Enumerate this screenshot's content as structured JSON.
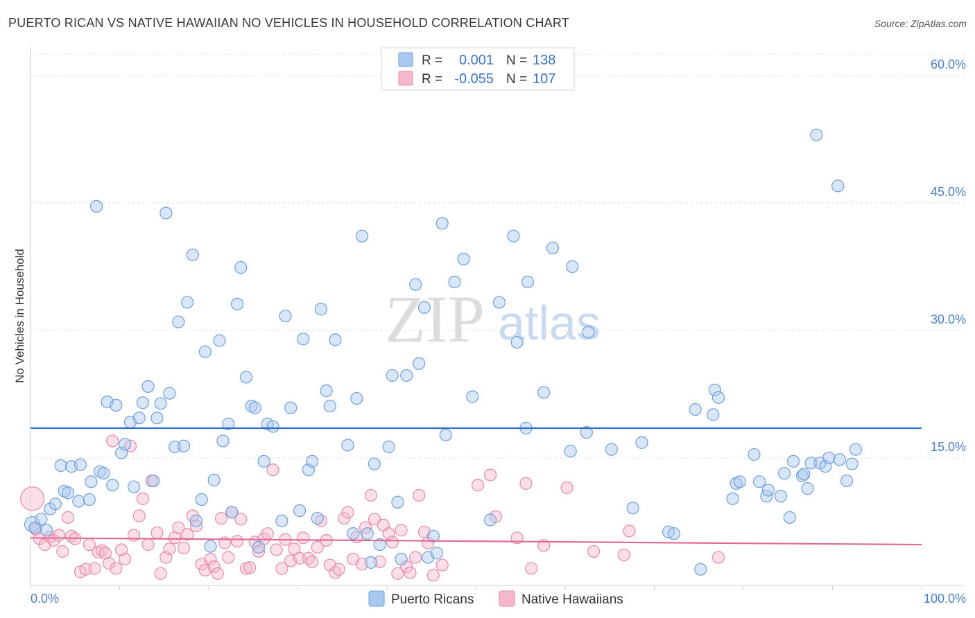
{
  "chart_data": {
    "type": "scatter",
    "title": "PUERTO RICAN VS NATIVE HAWAIIAN NO VEHICLES IN HOUSEHOLD CORRELATION CHART",
    "source": "Source: ZipAtlas.com",
    "xlabel": "",
    "ylabel": "No Vehicles in Household",
    "xlim": [
      0,
      100
    ],
    "ylim": [
      0,
      63
    ],
    "x_tick_labels": [
      "0.0%",
      "100.0%"
    ],
    "y_ticks": [
      15,
      30,
      45,
      60
    ],
    "y_tick_labels": [
      "15.0%",
      "30.0%",
      "45.0%",
      "60.0%"
    ],
    "watermark": {
      "zip": "ZIP",
      "atlas": "atlas"
    },
    "stats_legend": [
      {
        "r_label": "R =",
        "r_value": "0.001",
        "n_label": "N =",
        "n_value": "138"
      },
      {
        "r_label": "R =",
        "r_value": "-0.055",
        "n_label": "N =",
        "n_value": "107"
      }
    ],
    "series": [
      {
        "name": "Puerto Ricans",
        "color": "#a9c8ef",
        "stroke": "#6e9fdb",
        "trend_color": "#2e6fc7",
        "trend": [
          18.5,
          18.5
        ],
        "points": [
          [
            0.2,
            7.2
          ],
          [
            0.5,
            6.8
          ],
          [
            1.2,
            7.8
          ],
          [
            1.8,
            6.5
          ],
          [
            2.2,
            9.0
          ],
          [
            2.8,
            9.6
          ],
          [
            3.4,
            14.1
          ],
          [
            3.8,
            11.1
          ],
          [
            4.2,
            10.9
          ],
          [
            4.6,
            14.0
          ],
          [
            5.4,
            9.9
          ],
          [
            5.6,
            14.2
          ],
          [
            6.6,
            10.1
          ],
          [
            6.8,
            12.2
          ],
          [
            7.4,
            44.6
          ],
          [
            7.8,
            13.4
          ],
          [
            8.2,
            13.2
          ],
          [
            8.6,
            21.6
          ],
          [
            9.2,
            11.8
          ],
          [
            9.6,
            21.2
          ],
          [
            10.2,
            15.6
          ],
          [
            10.6,
            16.6
          ],
          [
            11.2,
            19.2
          ],
          [
            11.6,
            11.6
          ],
          [
            12.2,
            19.7
          ],
          [
            12.6,
            21.5
          ],
          [
            13.2,
            23.4
          ],
          [
            13.8,
            12.3
          ],
          [
            14.2,
            19.7
          ],
          [
            14.6,
            21.4
          ],
          [
            15.2,
            43.8
          ],
          [
            15.6,
            22.6
          ],
          [
            16.2,
            16.3
          ],
          [
            16.6,
            31.0
          ],
          [
            17.2,
            16.4
          ],
          [
            17.6,
            33.3
          ],
          [
            18.2,
            38.9
          ],
          [
            18.6,
            7.6
          ],
          [
            19.2,
            10.1
          ],
          [
            19.6,
            27.5
          ],
          [
            20.2,
            4.6
          ],
          [
            20.6,
            12.4
          ],
          [
            21.2,
            28.8
          ],
          [
            21.6,
            17.0
          ],
          [
            22.2,
            19.0
          ],
          [
            22.6,
            8.6
          ],
          [
            23.2,
            33.1
          ],
          [
            23.6,
            37.4
          ],
          [
            24.2,
            24.5
          ],
          [
            24.8,
            21.1
          ],
          [
            25.2,
            20.9
          ],
          [
            25.6,
            4.5
          ],
          [
            26.2,
            14.6
          ],
          [
            26.6,
            19.0
          ],
          [
            27.2,
            18.7
          ],
          [
            28.2,
            7.6
          ],
          [
            28.6,
            31.7
          ],
          [
            29.2,
            20.9
          ],
          [
            30.2,
            8.8
          ],
          [
            30.6,
            29.0
          ],
          [
            31.2,
            13.6
          ],
          [
            31.6,
            14.6
          ],
          [
            32.2,
            7.9
          ],
          [
            32.6,
            32.5
          ],
          [
            33.2,
            22.9
          ],
          [
            33.6,
            21.1
          ],
          [
            34.2,
            28.9
          ],
          [
            35.6,
            16.5
          ],
          [
            36.2,
            6.1
          ],
          [
            36.6,
            22.0
          ],
          [
            37.2,
            41.1
          ],
          [
            37.8,
            6.1
          ],
          [
            38.2,
            2.7
          ],
          [
            38.6,
            14.3
          ],
          [
            39.2,
            4.8
          ],
          [
            40.2,
            16.3
          ],
          [
            40.6,
            24.7
          ],
          [
            41.2,
            9.8
          ],
          [
            41.6,
            3.1
          ],
          [
            42.2,
            24.7
          ],
          [
            43.2,
            35.4
          ],
          [
            43.6,
            26.1
          ],
          [
            44.2,
            32.7
          ],
          [
            44.6,
            3.3
          ],
          [
            45.2,
            5.8
          ],
          [
            45.6,
            3.8
          ],
          [
            46.2,
            42.6
          ],
          [
            46.6,
            17.7
          ],
          [
            47.6,
            35.7
          ],
          [
            48.6,
            38.4
          ],
          [
            49.6,
            22.2
          ],
          [
            51.6,
            7.7
          ],
          [
            52.6,
            33.3
          ],
          [
            54.2,
            41.1
          ],
          [
            54.6,
            28.6
          ],
          [
            55.6,
            18.5
          ],
          [
            55.8,
            35.7
          ],
          [
            57.6,
            22.7
          ],
          [
            58.6,
            39.7
          ],
          [
            60.6,
            15.8
          ],
          [
            60.8,
            37.5
          ],
          [
            62.4,
            18.0
          ],
          [
            62.6,
            29.8
          ],
          [
            65.2,
            16.0
          ],
          [
            67.6,
            9.1
          ],
          [
            68.6,
            16.8
          ],
          [
            71.6,
            6.3
          ],
          [
            72.2,
            6.1
          ],
          [
            74.6,
            20.7
          ],
          [
            75.2,
            1.9
          ],
          [
            76.6,
            20.1
          ],
          [
            76.8,
            23.0
          ],
          [
            77.2,
            22.1
          ],
          [
            78.8,
            10.2
          ],
          [
            79.2,
            12.0
          ],
          [
            79.6,
            12.2
          ],
          [
            81.2,
            15.4
          ],
          [
            81.8,
            12.2
          ],
          [
            82.6,
            10.5
          ],
          [
            82.8,
            11.2
          ],
          [
            84.2,
            10.5
          ],
          [
            84.6,
            13.2
          ],
          [
            85.2,
            8.0
          ],
          [
            85.6,
            14.6
          ],
          [
            86.6,
            12.9
          ],
          [
            86.8,
            13.1
          ],
          [
            87.2,
            11.4
          ],
          [
            87.6,
            14.4
          ],
          [
            88.2,
            53.0
          ],
          [
            88.6,
            14.4
          ],
          [
            89.2,
            14.0
          ],
          [
            89.6,
            15.0
          ],
          [
            90.6,
            47.0
          ],
          [
            90.8,
            14.8
          ],
          [
            91.6,
            12.3
          ],
          [
            92.2,
            14.3
          ],
          [
            92.6,
            16.0
          ]
        ]
      },
      {
        "name": "Native Hawaiians",
        "color": "#f5b8cb",
        "stroke": "#e789a8",
        "trend_color": "#e26b96",
        "trend": [
          5.6,
          4.8
        ],
        "points": [
          [
            0.2,
            10.2
          ],
          [
            0.6,
            6.6
          ],
          [
            1.0,
            5.5
          ],
          [
            1.6,
            4.8
          ],
          [
            2.2,
            5.7
          ],
          [
            2.6,
            5.3
          ],
          [
            3.2,
            5.9
          ],
          [
            3.6,
            4.0
          ],
          [
            4.2,
            8.0
          ],
          [
            4.6,
            5.8
          ],
          [
            5.0,
            5.5
          ],
          [
            5.6,
            1.6
          ],
          [
            6.2,
            1.9
          ],
          [
            6.6,
            4.8
          ],
          [
            7.2,
            2.0
          ],
          [
            7.6,
            3.9
          ],
          [
            8.0,
            4.1
          ],
          [
            8.4,
            3.8
          ],
          [
            8.8,
            2.6
          ],
          [
            9.2,
            17.0
          ],
          [
            9.6,
            2.0
          ],
          [
            10.2,
            4.2
          ],
          [
            10.6,
            3.1
          ],
          [
            11.2,
            16.4
          ],
          [
            11.6,
            5.9
          ],
          [
            12.2,
            8.2
          ],
          [
            12.6,
            10.2
          ],
          [
            13.2,
            4.8
          ],
          [
            13.6,
            12.3
          ],
          [
            14.2,
            6.2
          ],
          [
            14.6,
            1.4
          ],
          [
            15.2,
            3.3
          ],
          [
            15.6,
            4.3
          ],
          [
            16.2,
            5.6
          ],
          [
            16.6,
            6.8
          ],
          [
            17.2,
            4.4
          ],
          [
            17.6,
            6.0
          ],
          [
            18.2,
            8.2
          ],
          [
            18.6,
            7.0
          ],
          [
            19.2,
            2.5
          ],
          [
            19.6,
            1.8
          ],
          [
            20.2,
            3.1
          ],
          [
            20.6,
            2.2
          ],
          [
            21.0,
            1.4
          ],
          [
            21.4,
            7.9
          ],
          [
            21.8,
            5.0
          ],
          [
            22.2,
            3.3
          ],
          [
            22.6,
            8.6
          ],
          [
            23.2,
            5.2
          ],
          [
            23.6,
            7.8
          ],
          [
            24.2,
            2.0
          ],
          [
            24.6,
            2.1
          ],
          [
            25.2,
            5.1
          ],
          [
            25.6,
            4.0
          ],
          [
            26.2,
            5.5
          ],
          [
            26.6,
            6.1
          ],
          [
            27.2,
            13.6
          ],
          [
            27.6,
            4.2
          ],
          [
            28.2,
            2.0
          ],
          [
            28.6,
            5.4
          ],
          [
            29.2,
            2.9
          ],
          [
            29.6,
            4.3
          ],
          [
            30.2,
            3.2
          ],
          [
            30.6,
            5.6
          ],
          [
            31.2,
            3.2
          ],
          [
            31.6,
            2.8
          ],
          [
            32.2,
            4.5
          ],
          [
            32.6,
            7.6
          ],
          [
            33.2,
            5.3
          ],
          [
            33.6,
            2.4
          ],
          [
            34.2,
            1.5
          ],
          [
            34.6,
            1.9
          ],
          [
            35.2,
            7.9
          ],
          [
            35.6,
            8.6
          ],
          [
            36.2,
            3.1
          ],
          [
            36.6,
            5.7
          ],
          [
            37.2,
            2.5
          ],
          [
            37.6,
            6.8
          ],
          [
            38.2,
            10.6
          ],
          [
            38.6,
            7.8
          ],
          [
            39.2,
            2.8
          ],
          [
            39.6,
            7.1
          ],
          [
            40.2,
            6.1
          ],
          [
            40.6,
            5.1
          ],
          [
            41.2,
            1.4
          ],
          [
            41.6,
            6.5
          ],
          [
            42.2,
            2.2
          ],
          [
            42.6,
            1.5
          ],
          [
            43.2,
            3.3
          ],
          [
            43.6,
            10.6
          ],
          [
            44.2,
            6.3
          ],
          [
            44.6,
            5.0
          ],
          [
            45.2,
            1.2
          ],
          [
            46.2,
            2.4
          ],
          [
            50.2,
            11.8
          ],
          [
            51.6,
            13.0
          ],
          [
            52.2,
            8.1
          ],
          [
            54.6,
            5.6
          ],
          [
            55.6,
            12.0
          ],
          [
            56.2,
            2.0
          ],
          [
            57.6,
            4.7
          ],
          [
            60.2,
            11.5
          ],
          [
            63.2,
            4.0
          ],
          [
            66.6,
            3.6
          ],
          [
            67.2,
            6.4
          ],
          [
            77.2,
            3.3
          ]
        ]
      }
    ],
    "bottom_legend": [
      "Puerto Ricans",
      "Native Hawaiians"
    ]
  }
}
